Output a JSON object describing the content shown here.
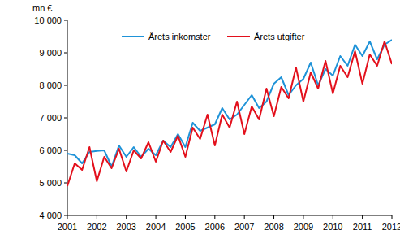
{
  "chart_data": {
    "type": "line",
    "y_label": "mn €",
    "legend": "top",
    "grid": false,
    "x": [
      2001,
      2001.25,
      2001.5,
      2001.75,
      2002,
      2002.25,
      2002.5,
      2002.75,
      2003,
      2003.25,
      2003.5,
      2003.75,
      2004,
      2004.25,
      2004.5,
      2004.75,
      2005,
      2005.25,
      2005.5,
      2005.75,
      2006,
      2006.25,
      2006.5,
      2006.75,
      2007,
      2007.25,
      2007.5,
      2007.75,
      2008,
      2008.25,
      2008.5,
      2008.75,
      2009,
      2009.25,
      2009.5,
      2009.75,
      2010,
      2010.25,
      2010.5,
      2010.75,
      2011,
      2011.25,
      2011.5,
      2011.75,
      2012
    ],
    "xlim": [
      2001,
      2012
    ],
    "xticks": [
      2001,
      2002,
      2003,
      2004,
      2005,
      2006,
      2007,
      2008,
      2009,
      2010,
      2011,
      2012
    ],
    "ylim": [
      4000,
      10000
    ],
    "yticks": [
      {
        "value": 4000,
        "label": "4 000"
      },
      {
        "value": 5000,
        "label": "5 000"
      },
      {
        "value": 6000,
        "label": "6 000"
      },
      {
        "value": 7000,
        "label": "7 000"
      },
      {
        "value": 8000,
        "label": "8 000"
      },
      {
        "value": 9000,
        "label": "9 000"
      },
      {
        "value": 10000,
        "label": "10 000"
      }
    ],
    "series": [
      {
        "name": "Årets inkomster",
        "color": "#1f93d8",
        "values": [
          5900,
          5850,
          5600,
          5950,
          5980,
          6000,
          5500,
          6150,
          5800,
          6100,
          5800,
          6050,
          5850,
          6300,
          6100,
          6500,
          6100,
          6850,
          6600,
          6700,
          6800,
          7300,
          6950,
          7100,
          7400,
          7700,
          7300,
          7500,
          8050,
          8250,
          7700,
          8000,
          8200,
          8700,
          8000,
          8500,
          8300,
          8900,
          8600,
          9250,
          8900,
          9350,
          8800,
          9250,
          9400
        ]
      },
      {
        "name": "Årets utgifter",
        "color": "#e3101c",
        "values": [
          4900,
          5600,
          5400,
          6100,
          5050,
          5800,
          5450,
          6050,
          5350,
          6000,
          5750,
          6250,
          5650,
          6300,
          5950,
          6450,
          5800,
          6700,
          6350,
          7100,
          6150,
          7100,
          6700,
          7500,
          6500,
          7350,
          6950,
          7900,
          7050,
          7950,
          7600,
          8550,
          7500,
          8400,
          7900,
          8750,
          7750,
          8600,
          8250,
          9050,
          8050,
          8950,
          8600,
          9350,
          8650
        ]
      }
    ]
  }
}
